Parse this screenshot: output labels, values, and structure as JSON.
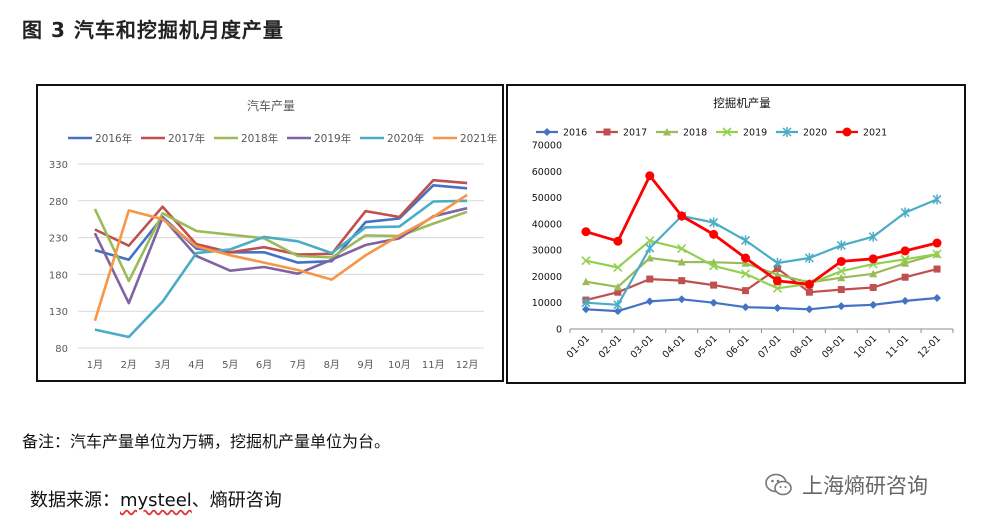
{
  "figure_title": "图 3    汽车和挖掘机月度产量",
  "note": "备注：汽车产量单位为万辆，挖掘机产量单位为台。",
  "source_prefix": "数据来源：",
  "source_brand": "mysteel",
  "source_suffix": "、熵研咨询",
  "watermark": "上海熵研咨询",
  "chart_data": [
    {
      "type": "line",
      "title": "汽车产量",
      "xlabel": "",
      "ylabel": "",
      "ylim": [
        80,
        330
      ],
      "yticks": [
        80,
        130,
        180,
        230,
        280,
        330
      ],
      "categories": [
        "1月",
        "2月",
        "3月",
        "4月",
        "5月",
        "6月",
        "7月",
        "8月",
        "9月",
        "10月",
        "11月",
        "12月"
      ],
      "legend": "top",
      "series": [
        {
          "name": "2016年",
          "color": "#4472C4",
          "marker": "none",
          "values": [
            213,
            200,
            258,
            215,
            210,
            210,
            196,
            198,
            251,
            256,
            301,
            297
          ]
        },
        {
          "name": "2017年",
          "color": "#C0504D",
          "marker": "none",
          "values": [
            241,
            219,
            272,
            221,
            210,
            217,
            207,
            208,
            266,
            258,
            308,
            304
          ]
        },
        {
          "name": "2018年",
          "color": "#9BBB59",
          "marker": "none",
          "values": [
            269,
            171,
            263,
            239,
            234,
            229,
            205,
            203,
            233,
            232,
            249,
            265
          ]
        },
        {
          "name": "2019年",
          "color": "#8064A2",
          "marker": "none",
          "values": [
            236,
            141,
            257,
            205,
            185,
            190,
            181,
            200,
            220,
            229,
            259,
            270
          ]
        },
        {
          "name": "2020年",
          "color": "#4BACC6",
          "marker": "none",
          "values": [
            105,
            95,
            143,
            209,
            214,
            231,
            225,
            209,
            244,
            245,
            279,
            280
          ]
        },
        {
          "name": "2021年",
          "color": "#F79646",
          "marker": "none",
          "values": [
            117,
            267,
            255,
            218,
            206,
            196,
            186,
            173,
            206,
            233,
            258,
            288
          ]
        }
      ]
    },
    {
      "type": "line",
      "title": "挖掘机产量",
      "xlabel": "",
      "ylabel": "",
      "ylim": [
        0,
        70000
      ],
      "yticks": [
        0,
        10000,
        20000,
        30000,
        40000,
        50000,
        60000,
        70000
      ],
      "categories": [
        "01-01",
        "02-01",
        "03-01",
        "04-01",
        "05-01",
        "06-01",
        "07-01",
        "08-01",
        "09-01",
        "10-01",
        "11-01",
        "12-01"
      ],
      "legend": "top",
      "series": [
        {
          "name": "2016",
          "color": "#4472C4",
          "marker": "diamond",
          "values": [
            7500,
            6800,
            10500,
            11300,
            10000,
            8300,
            8000,
            7500,
            8700,
            9200,
            10700,
            11800
          ]
        },
        {
          "name": "2017",
          "color": "#C0504D",
          "marker": "square",
          "values": [
            11000,
            14000,
            19000,
            18400,
            16700,
            14600,
            23000,
            14000,
            15000,
            15800,
            19700,
            22800
          ]
        },
        {
          "name": "2018",
          "color": "#9BBB59",
          "marker": "triangle",
          "values": [
            18000,
            16000,
            27000,
            25500,
            25400,
            25000,
            20700,
            17700,
            19500,
            21000,
            25000,
            28500
          ]
        },
        {
          "name": "2019",
          "color": "#92D050",
          "marker": "x",
          "values": [
            26000,
            23400,
            33600,
            30600,
            24000,
            21000,
            15500,
            17200,
            22000,
            24700,
            26500,
            28500
          ]
        },
        {
          "name": "2020",
          "color": "#4BACC6",
          "marker": "asterisk",
          "values": [
            10000,
            9200,
            30800,
            43000,
            40500,
            33700,
            25100,
            27000,
            31800,
            35100,
            44300,
            49300
          ]
        },
        {
          "name": "2021",
          "color": "#FF0000",
          "marker": "circle",
          "values": [
            37000,
            33400,
            58300,
            43000,
            36000,
            27000,
            18300,
            17000,
            25700,
            26700,
            29700,
            32700
          ]
        }
      ]
    }
  ]
}
